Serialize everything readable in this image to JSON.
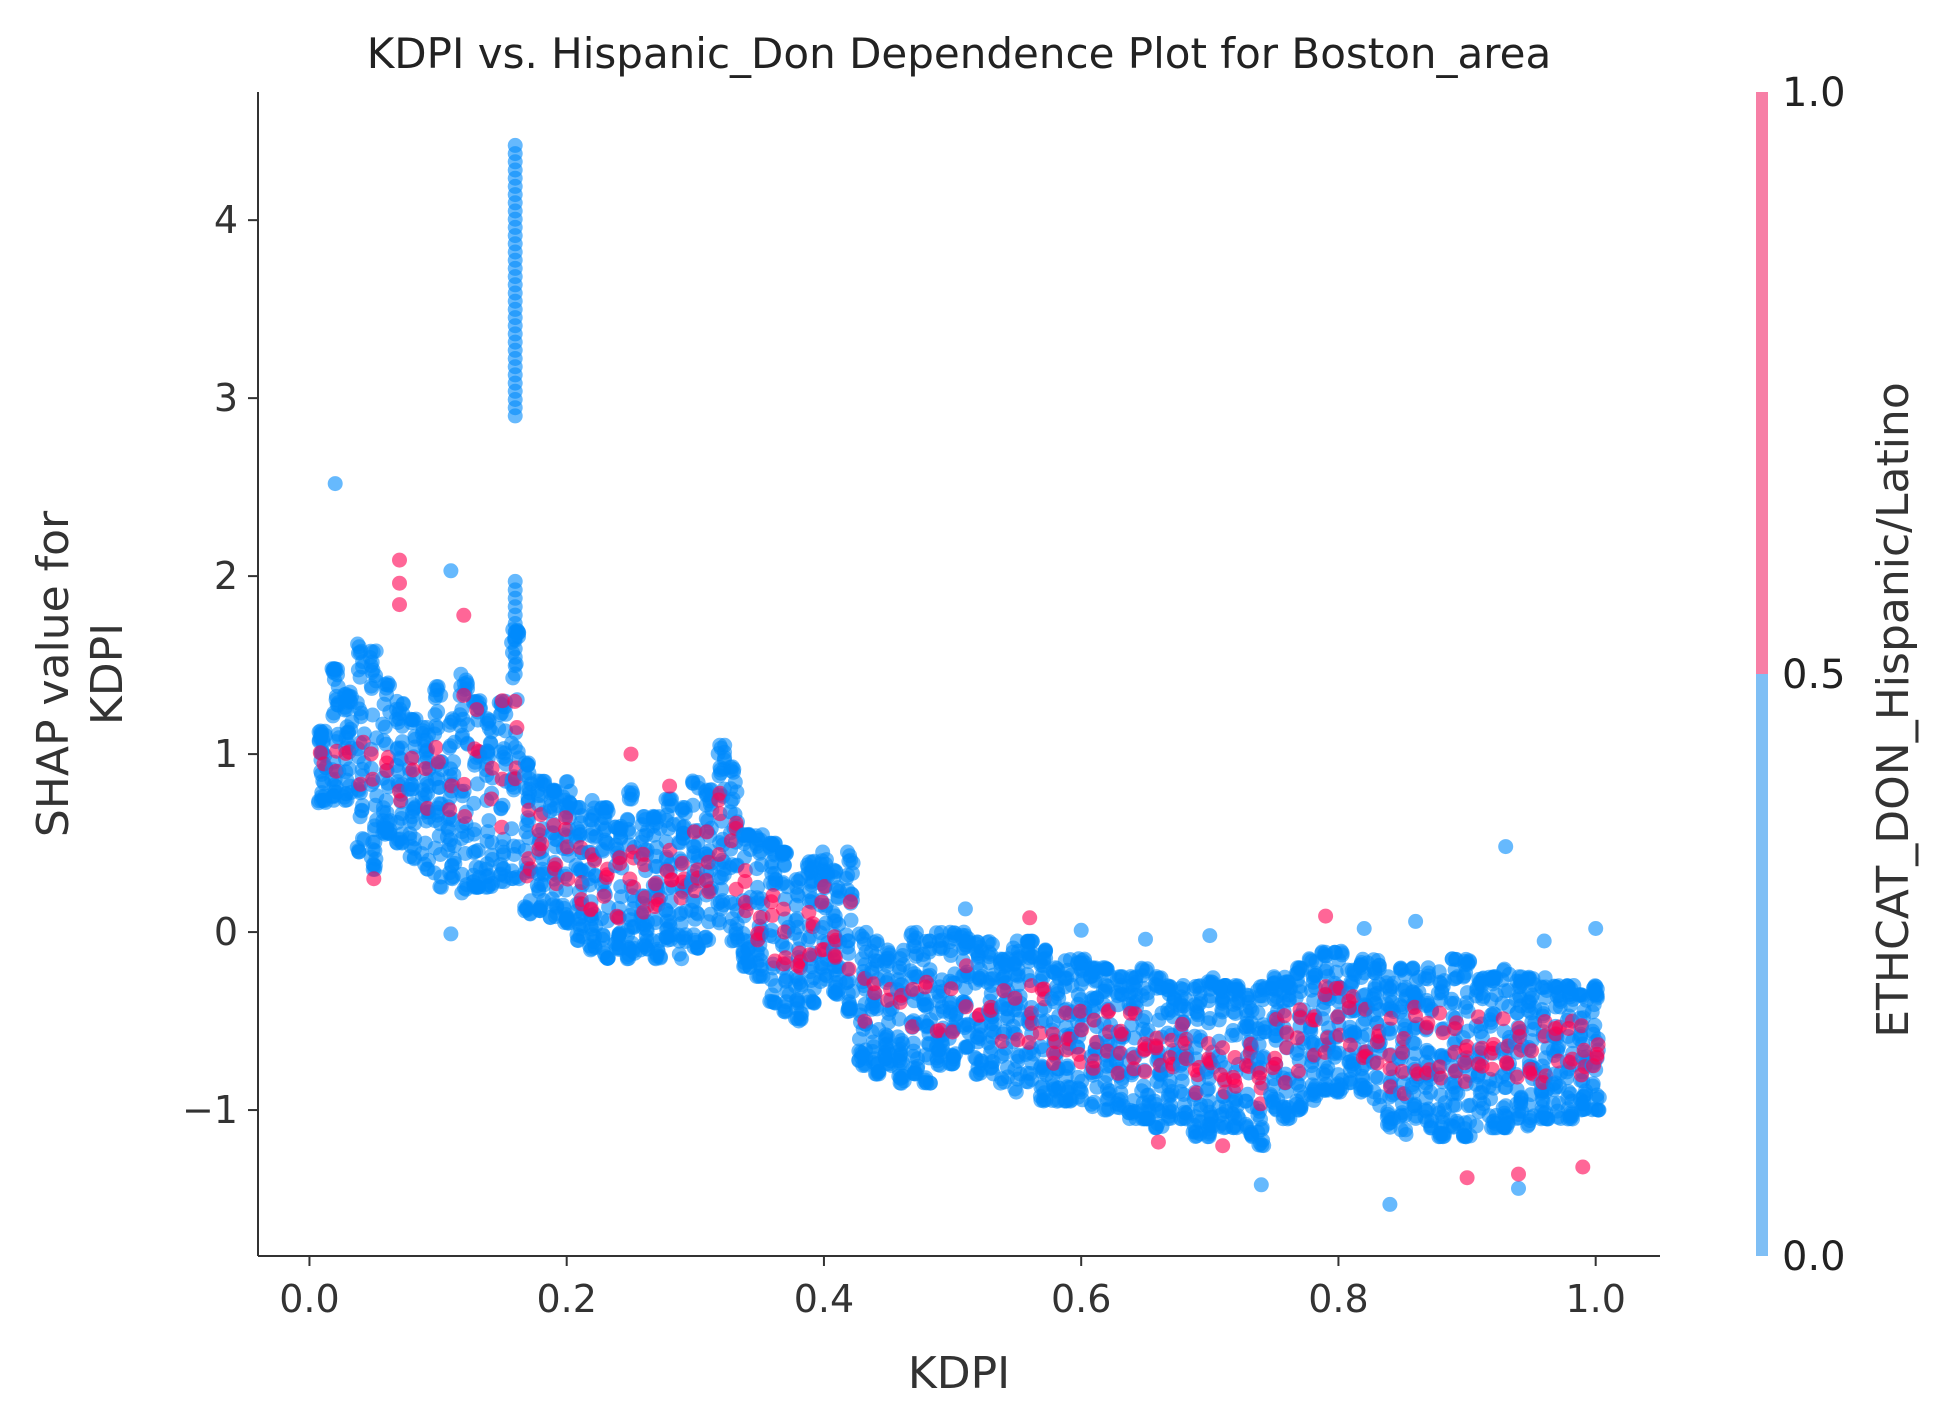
{
  "chart_data": {
    "type": "scatter",
    "title": "KDPI vs. Hispanic_Don Dependence Plot for Boston_area",
    "xlabel": "KDPI",
    "ylabel_lines": [
      "SHAP value for",
      "KDPI"
    ],
    "xlim": [
      -0.04,
      1.05
    ],
    "ylim": [
      -1.82,
      4.72
    ],
    "xticks": [
      0.0,
      0.2,
      0.4,
      0.6,
      0.8,
      1.0
    ],
    "xtick_labels": [
      "0.0",
      "0.2",
      "0.4",
      "0.6",
      "0.8",
      "1.0"
    ],
    "yticks": [
      -1,
      0,
      1,
      2,
      3,
      4
    ],
    "ytick_labels": [
      "−1",
      "0",
      "1",
      "2",
      "3",
      "4"
    ],
    "grid": false,
    "point_alpha": 0.6,
    "colorbar": {
      "label": "ETHCAT_DON_Hispanic/Latino",
      "range": [
        0.0,
        1.0
      ],
      "ticks": [
        0.0,
        0.5,
        1.0
      ],
      "tick_labels": [
        "0.0",
        "0.5",
        "1.0"
      ],
      "low_color": "#7fbff5",
      "high_color": "#f77fa6"
    },
    "colors": {
      "group_0": "#008bfb",
      "group_1": "#ff0052"
    },
    "x_grid_values": [
      0.01,
      0.02,
      0.03,
      0.04,
      0.05,
      0.06,
      0.07,
      0.08,
      0.09,
      0.1,
      0.11,
      0.12,
      0.13,
      0.14,
      0.15,
      0.16,
      0.17,
      0.18,
      0.19,
      0.2,
      0.21,
      0.22,
      0.23,
      0.24,
      0.25,
      0.26,
      0.27,
      0.28,
      0.29,
      0.3,
      0.31,
      0.32,
      0.33,
      0.34,
      0.35,
      0.36,
      0.37,
      0.38,
      0.39,
      0.4,
      0.41,
      0.42,
      0.43,
      0.44,
      0.45,
      0.46,
      0.47,
      0.48,
      0.49,
      0.5,
      0.51,
      0.52,
      0.53,
      0.54,
      0.55,
      0.56,
      0.57,
      0.58,
      0.59,
      0.6,
      0.61,
      0.62,
      0.63,
      0.64,
      0.65,
      0.66,
      0.67,
      0.68,
      0.69,
      0.7,
      0.71,
      0.72,
      0.73,
      0.74,
      0.75,
      0.76,
      0.77,
      0.78,
      0.79,
      0.8,
      0.81,
      0.82,
      0.83,
      0.84,
      0.85,
      0.86,
      0.87,
      0.88,
      0.89,
      0.9,
      0.91,
      0.92,
      0.93,
      0.94,
      0.95,
      0.96,
      0.97,
      0.98,
      0.99,
      1.0
    ],
    "column_ranges_group_0": [
      [
        0.72,
        1.13
      ],
      [
        0.7,
        1.48
      ],
      [
        0.74,
        1.35
      ],
      [
        0.45,
        1.62
      ],
      [
        0.35,
        1.58
      ],
      [
        0.55,
        1.4
      ],
      [
        0.5,
        1.3
      ],
      [
        0.4,
        1.2
      ],
      [
        0.35,
        1.15
      ],
      [
        0.25,
        1.38
      ],
      [
        0.3,
        1.2
      ],
      [
        0.22,
        1.45
      ],
      [
        0.25,
        1.3
      ],
      [
        0.25,
        1.2
      ],
      [
        0.28,
        1.3
      ],
      [
        0.3,
        1.7
      ],
      [
        0.1,
        0.95
      ],
      [
        0.12,
        0.85
      ],
      [
        0.08,
        0.8
      ],
      [
        0.05,
        0.85
      ],
      [
        -0.05,
        0.7
      ],
      [
        -0.1,
        0.75
      ],
      [
        -0.15,
        0.7
      ],
      [
        -0.1,
        0.6
      ],
      [
        -0.15,
        0.8
      ],
      [
        -0.1,
        0.65
      ],
      [
        -0.15,
        0.65
      ],
      [
        -0.05,
        0.75
      ],
      [
        -0.15,
        0.7
      ],
      [
        -0.1,
        0.85
      ],
      [
        -0.05,
        0.8
      ],
      [
        0.05,
        1.05
      ],
      [
        -0.05,
        0.95
      ],
      [
        -0.2,
        0.55
      ],
      [
        -0.25,
        0.55
      ],
      [
        -0.4,
        0.5
      ],
      [
        -0.45,
        0.45
      ],
      [
        -0.5,
        0.3
      ],
      [
        -0.4,
        0.4
      ],
      [
        -0.3,
        0.45
      ],
      [
        -0.35,
        0.35
      ],
      [
        -0.45,
        0.45
      ],
      [
        -0.75,
        0.0
      ],
      [
        -0.8,
        -0.05
      ],
      [
        -0.75,
        -0.1
      ],
      [
        -0.85,
        -0.1
      ],
      [
        -0.8,
        0.0
      ],
      [
        -0.85,
        -0.05
      ],
      [
        -0.75,
        0.0
      ],
      [
        -0.75,
        0.0
      ],
      [
        -0.65,
        0.0
      ],
      [
        -0.8,
        -0.05
      ],
      [
        -0.8,
        -0.05
      ],
      [
        -0.85,
        -0.15
      ],
      [
        -0.9,
        -0.05
      ],
      [
        -0.85,
        -0.05
      ],
      [
        -0.95,
        -0.1
      ],
      [
        -0.95,
        -0.2
      ],
      [
        -0.95,
        -0.15
      ],
      [
        -0.95,
        -0.15
      ],
      [
        -1.0,
        -0.2
      ],
      [
        -1.0,
        -0.2
      ],
      [
        -1.0,
        -0.25
      ],
      [
        -1.05,
        -0.25
      ],
      [
        -1.05,
        -0.2
      ],
      [
        -1.1,
        -0.25
      ],
      [
        -1.05,
        -0.3
      ],
      [
        -1.05,
        -0.3
      ],
      [
        -1.15,
        -0.3
      ],
      [
        -1.15,
        -0.25
      ],
      [
        -1.1,
        -0.3
      ],
      [
        -1.1,
        -0.3
      ],
      [
        -1.15,
        -0.35
      ],
      [
        -1.2,
        -0.3
      ],
      [
        -1.0,
        -0.25
      ],
      [
        -1.05,
        -0.25
      ],
      [
        -1.0,
        -0.2
      ],
      [
        -0.95,
        -0.15
      ],
      [
        -0.9,
        -0.1
      ],
      [
        -0.9,
        -0.1
      ],
      [
        -0.85,
        -0.2
      ],
      [
        -0.9,
        -0.15
      ],
      [
        -1.0,
        -0.15
      ],
      [
        -1.1,
        -0.25
      ],
      [
        -1.15,
        -0.2
      ],
      [
        -1.05,
        -0.2
      ],
      [
        -1.1,
        -0.2
      ],
      [
        -1.15,
        -0.2
      ],
      [
        -1.1,
        -0.15
      ],
      [
        -1.15,
        -0.15
      ],
      [
        -1.1,
        -0.25
      ],
      [
        -1.1,
        -0.25
      ],
      [
        -1.1,
        -0.2
      ],
      [
        -1.05,
        -0.25
      ],
      [
        -1.1,
        -0.25
      ],
      [
        -1.05,
        -0.25
      ],
      [
        -1.05,
        -0.3
      ],
      [
        -1.05,
        -0.3
      ],
      [
        -1.0,
        -0.35
      ],
      [
        -1.0,
        -0.3
      ]
    ],
    "scattered_points": [
      {
        "x": 0.02,
        "y": 2.52,
        "group": 0
      },
      {
        "x": 0.11,
        "y": 2.03,
        "group": 0
      },
      {
        "x": 0.11,
        "y": -0.01,
        "group": 0
      },
      {
        "x": 0.07,
        "y": 2.09,
        "group": 1
      },
      {
        "x": 0.07,
        "y": 1.96,
        "group": 1
      },
      {
        "x": 0.07,
        "y": 1.84,
        "group": 1
      },
      {
        "x": 0.12,
        "y": 1.78,
        "group": 1
      },
      {
        "x": 0.06,
        "y": 0.95,
        "group": 1
      },
      {
        "x": 0.12,
        "y": 1.33,
        "group": 1
      },
      {
        "x": 0.13,
        "y": 1.25,
        "group": 1
      },
      {
        "x": 0.15,
        "y": 1.3,
        "group": 1
      },
      {
        "x": 0.05,
        "y": 0.3,
        "group": 1
      },
      {
        "x": 0.25,
        "y": 1.0,
        "group": 1
      },
      {
        "x": 0.28,
        "y": 0.82,
        "group": 1
      },
      {
        "x": 0.93,
        "y": 0.48,
        "group": 0
      },
      {
        "x": 0.84,
        "y": -1.53,
        "group": 0
      },
      {
        "x": 0.74,
        "y": -1.42,
        "group": 0
      },
      {
        "x": 0.94,
        "y": -1.44,
        "group": 0
      },
      {
        "x": 1.0,
        "y": 0.02,
        "group": 0
      },
      {
        "x": 0.6,
        "y": 0.01,
        "group": 0
      },
      {
        "x": 0.65,
        "y": -0.04,
        "group": 0
      },
      {
        "x": 0.7,
        "y": -0.02,
        "group": 0
      },
      {
        "x": 0.79,
        "y": 0.09,
        "group": 1
      },
      {
        "x": 0.86,
        "y": 0.06,
        "group": 0
      },
      {
        "x": 0.82,
        "y": 0.02,
        "group": 0
      },
      {
        "x": 0.51,
        "y": 0.13,
        "group": 0
      },
      {
        "x": 0.56,
        "y": 0.08,
        "group": 1
      },
      {
        "x": 0.99,
        "y": -1.32,
        "group": 1
      },
      {
        "x": 0.9,
        "y": -1.38,
        "group": 1
      },
      {
        "x": 0.94,
        "y": -1.36,
        "group": 1
      },
      {
        "x": 0.71,
        "y": -1.2,
        "group": 1
      },
      {
        "x": 0.66,
        "y": -1.18,
        "group": 1
      },
      {
        "x": 0.96,
        "y": -0.05,
        "group": 0
      }
    ],
    "vertical_columns": [
      {
        "x": 0.16,
        "y_from": 2.9,
        "y_to": 4.42,
        "group": 0
      },
      {
        "x": 0.16,
        "y_from": 1.45,
        "y_to": 1.97,
        "group": 0
      }
    ]
  }
}
